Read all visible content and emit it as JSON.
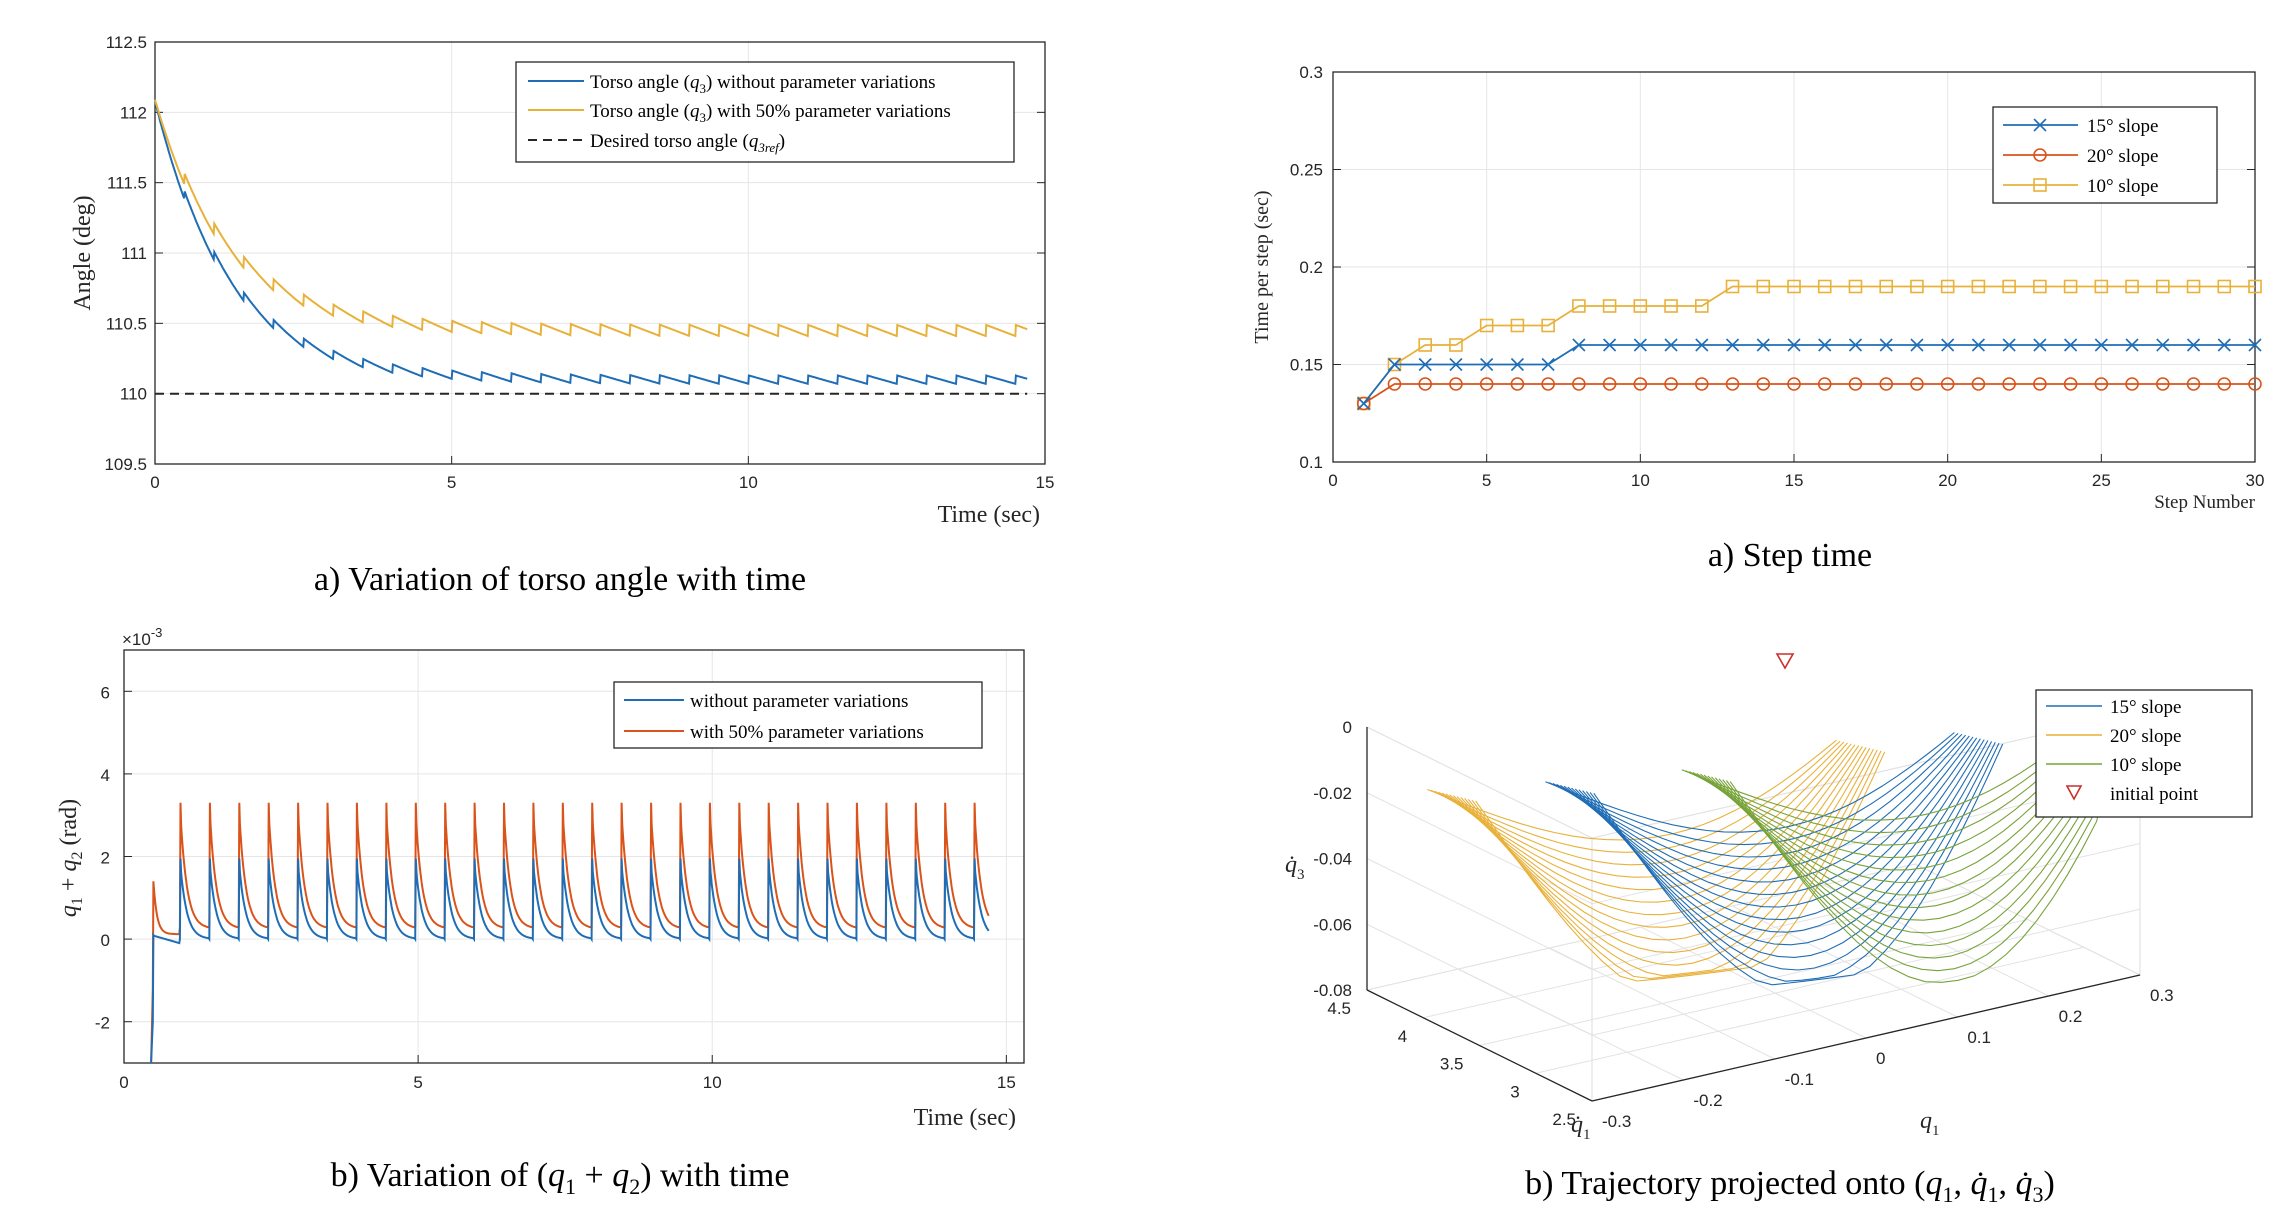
{
  "colors": {
    "blue": "#1f6db5",
    "orange": "#d9531a",
    "yellow": "#e8b13a",
    "green": "#77a33a",
    "red": "#c9302c",
    "dark": "#262626"
  },
  "chart_data": [
    {
      "id": "torso",
      "type": "line",
      "caption": "a) Variation of torso angle with time",
      "xlabel": "Time (sec)",
      "ylabel": "Angle (deg)",
      "xlim": [
        0,
        15
      ],
      "ylim": [
        109.5,
        112.5
      ],
      "xticks": [
        "0",
        "5",
        "10",
        "15"
      ],
      "yticks": [
        "109.5",
        "110",
        "110.5",
        "111",
        "111.5",
        "112",
        "112.5"
      ],
      "grid": true,
      "legend_position": "top-right",
      "series": [
        {
          "name": "Torso angle (q3) without parameter variations",
          "color": "blue",
          "start": 112.05,
          "final": 110.1,
          "tau": 1.25,
          "step_period": 0.5,
          "jump": 0.06,
          "x_end": 14.7
        },
        {
          "name": "Torso angle (q3) with 50% parameter variations",
          "color": "yellow",
          "start": 112.05,
          "final": 110.45,
          "tau": 1.25,
          "step_period": 0.5,
          "jump": 0.08,
          "x_end": 14.7
        },
        {
          "name": "Desired torso angle (q3ref)",
          "color": "dark",
          "dashed": true,
          "x": [
            0,
            14.7
          ],
          "values": [
            110,
            110
          ]
        }
      ]
    },
    {
      "id": "sum",
      "type": "line",
      "caption": "b) Variation of (q1 + q2) with time",
      "xlabel": "Time (sec)",
      "ylabel": "q1 + q2 (rad)",
      "exponent_label": "×10-3",
      "xlim": [
        0,
        15.3
      ],
      "ylim": [
        -3,
        7
      ],
      "xticks": [
        "0",
        "5",
        "10",
        "15"
      ],
      "yticks": [
        "-2",
        "0",
        "2",
        "4",
        "6"
      ],
      "grid": true,
      "legend_position": "top-right",
      "series": [
        {
          "name": "without parameter variations",
          "color": "blue",
          "first_step": 0.46,
          "pulse_start": 0.95,
          "pulse_period": 0.5,
          "pulse_count": 28,
          "peak": 1.95,
          "first_peak": 1.4
        },
        {
          "name": "with 50% parameter variations",
          "color": "orange",
          "first_step": 0.46,
          "pulse_start": 0.95,
          "pulse_period": 0.5,
          "pulse_count": 28,
          "peak": 3.3,
          "first_peak": 1.4
        }
      ]
    },
    {
      "id": "step",
      "type": "line",
      "caption": "a) Step time",
      "xlabel": "Step Number",
      "ylabel": "Time per step (sec)",
      "xlim": [
        0,
        30
      ],
      "ylim": [
        0.1,
        0.3
      ],
      "xticks": [
        "0",
        "5",
        "10",
        "15",
        "20",
        "25",
        "30"
      ],
      "yticks": [
        "0.1",
        "0.15",
        "0.2",
        "0.25",
        "0.3"
      ],
      "grid": true,
      "legend_position": "top-right",
      "x": [
        1,
        2,
        3,
        4,
        5,
        6,
        7,
        8,
        9,
        10,
        11,
        12,
        13,
        14,
        15,
        16,
        17,
        18,
        19,
        20,
        21,
        22,
        23,
        24,
        25,
        26,
        27,
        28,
        29,
        30
      ],
      "series": [
        {
          "name": "15° slope",
          "color": "blue",
          "marker": "x",
          "values": [
            0.13,
            0.15,
            0.15,
            0.15,
            0.15,
            0.15,
            0.15,
            0.16,
            0.16,
            0.16,
            0.16,
            0.16,
            0.16,
            0.16,
            0.16,
            0.16,
            0.16,
            0.16,
            0.16,
            0.16,
            0.16,
            0.16,
            0.16,
            0.16,
            0.16,
            0.16,
            0.16,
            0.16,
            0.16,
            0.16
          ]
        },
        {
          "name": "20° slope",
          "color": "orange",
          "marker": "o",
          "values": [
            0.13,
            0.14,
            0.14,
            0.14,
            0.14,
            0.14,
            0.14,
            0.14,
            0.14,
            0.14,
            0.14,
            0.14,
            0.14,
            0.14,
            0.14,
            0.14,
            0.14,
            0.14,
            0.14,
            0.14,
            0.14,
            0.14,
            0.14,
            0.14,
            0.14,
            0.14,
            0.14,
            0.14,
            0.14,
            0.14
          ]
        },
        {
          "name": "10° slope",
          "color": "yellow",
          "marker": "s",
          "values": [
            0.13,
            0.15,
            0.16,
            0.16,
            0.17,
            0.17,
            0.17,
            0.18,
            0.18,
            0.18,
            0.18,
            0.18,
            0.19,
            0.19,
            0.19,
            0.19,
            0.19,
            0.19,
            0.19,
            0.19,
            0.19,
            0.19,
            0.19,
            0.19,
            0.19,
            0.19,
            0.19,
            0.19,
            0.19,
            0.19
          ]
        }
      ]
    },
    {
      "id": "traj",
      "type": "line",
      "caption": "b) Trajectory projected onto (q1, q̇1, q̇3)",
      "xlabel": "q1",
      "ylabel": "q̇1",
      "zlabel": "q̇3",
      "xlim": [
        -0.3,
        0.3
      ],
      "ylim": [
        2.5,
        4.5
      ],
      "zlim": [
        -0.08,
        0
      ],
      "xticks": [
        "-0.3",
        "-0.2",
        "-0.1",
        "0",
        "0.1",
        "0.2",
        "0.3"
      ],
      "yticks": [
        "2.5",
        "3",
        "3.5",
        "4",
        "4.5"
      ],
      "zticks": [
        "-0.08",
        "-0.06",
        "-0.04",
        "-0.02",
        "0"
      ],
      "grid": true,
      "legend_position": "top-right",
      "series": [
        {
          "name": "15° slope",
          "color": "blue"
        },
        {
          "name": "20° slope",
          "color": "yellow"
        },
        {
          "name": "10° slope",
          "color": "green"
        },
        {
          "name": "initial point",
          "color": "red",
          "marker": "triangle-down"
        }
      ]
    }
  ]
}
